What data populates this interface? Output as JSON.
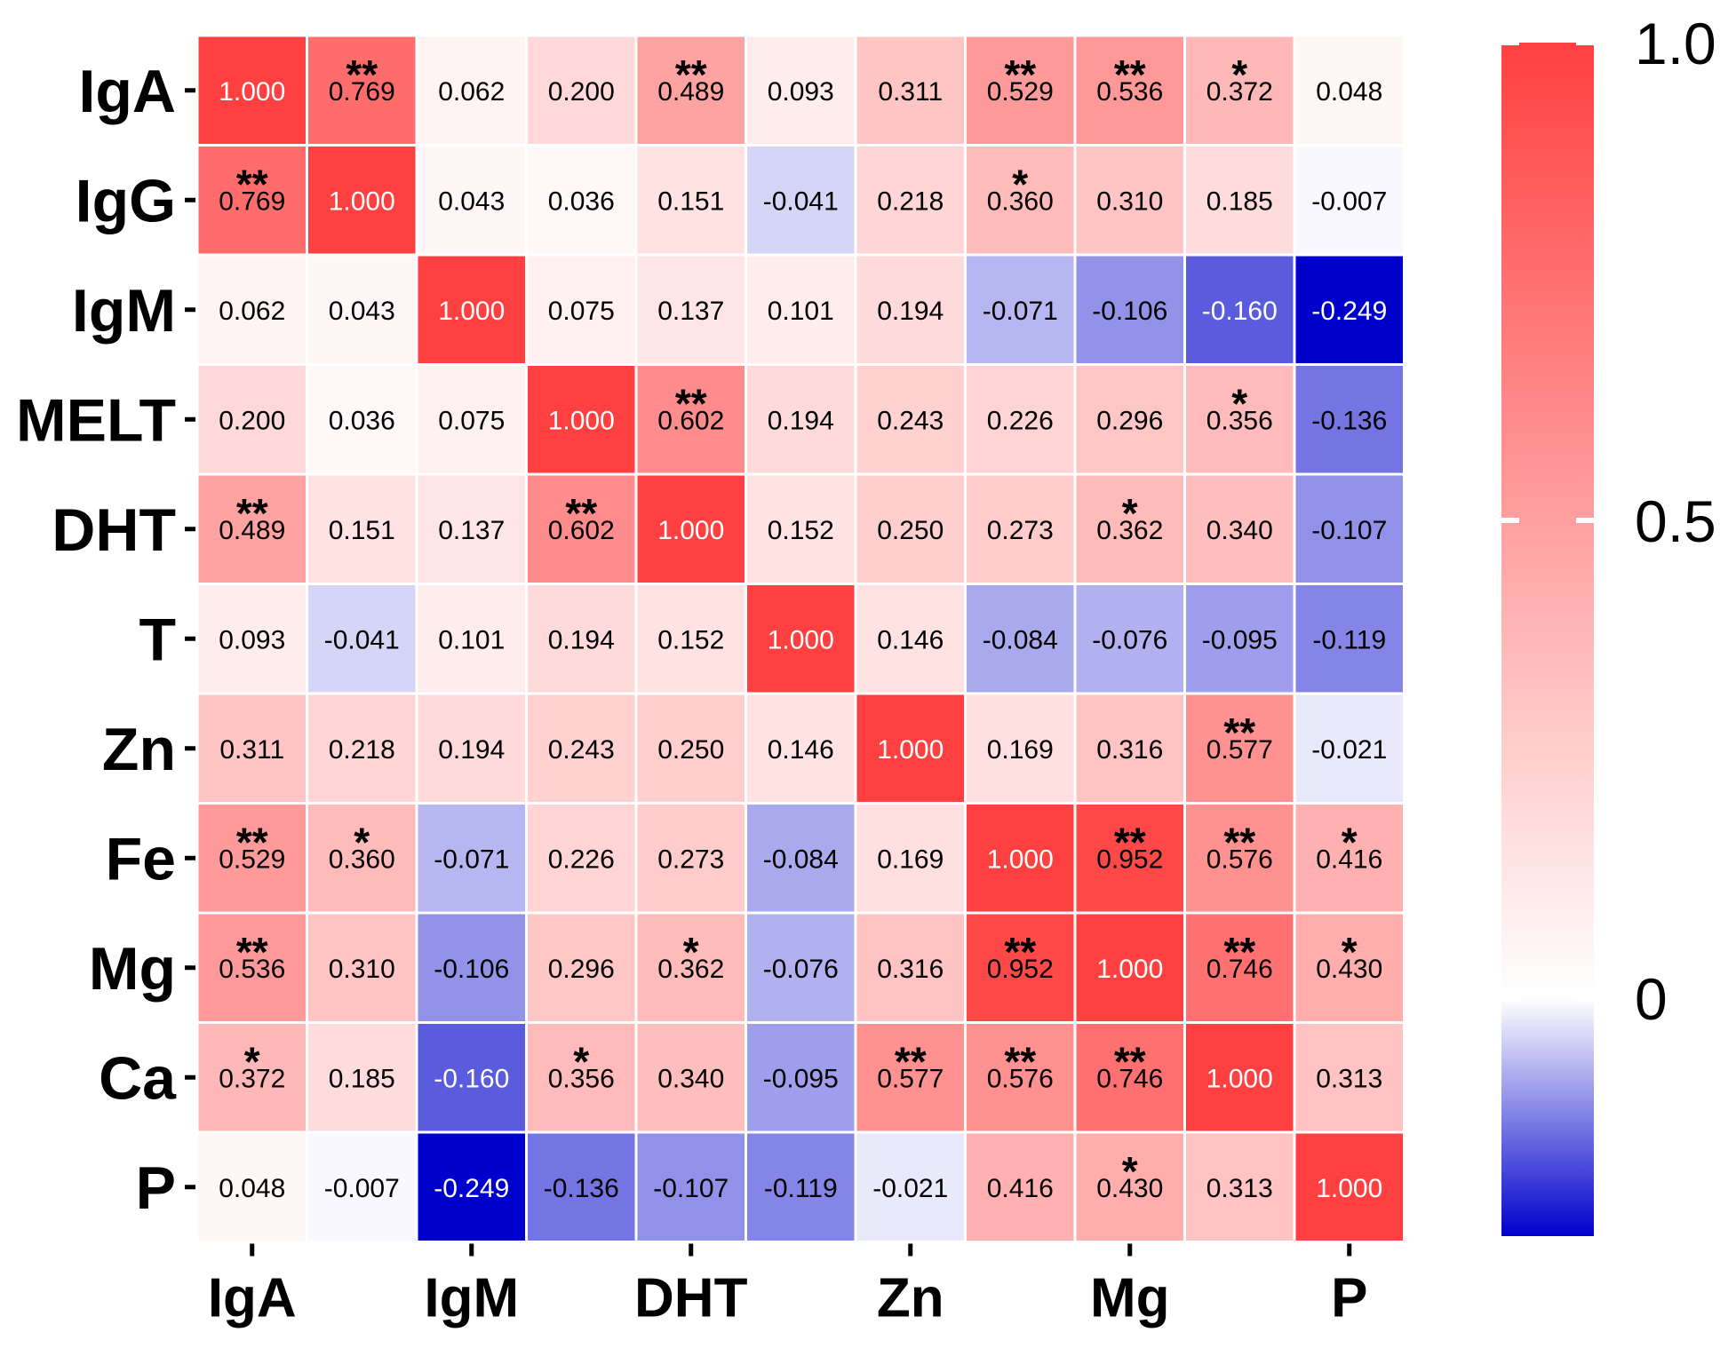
{
  "chart_data": {
    "type": "heatmap",
    "title": "",
    "xlabel": "",
    "ylabel": "",
    "variables": [
      "IgA",
      "IgG",
      "IgM",
      "MELT",
      "DHT",
      "T",
      "Zn",
      "Fe",
      "Mg",
      "Ca",
      "P"
    ],
    "row_labels": [
      "IgA",
      "IgG",
      "IgM",
      "MELT",
      "DHT",
      "T",
      "Zn",
      "Fe",
      "Mg",
      "Ca",
      "P"
    ],
    "x_tick_labels": [
      "IgA",
      "IgM",
      "DHT",
      "Zn",
      "Mg",
      "P"
    ],
    "x_tick_indices": [
      0,
      2,
      4,
      6,
      8,
      10
    ],
    "values": [
      [
        "1.000",
        "0.769",
        "0.062",
        "0.200",
        "0.489",
        "0.093",
        "0.311",
        "0.529",
        "0.536",
        "0.372",
        "0.048"
      ],
      [
        "0.769",
        "1.000",
        "0.043",
        "0.036",
        "0.151",
        "-0.041",
        "0.218",
        "0.360",
        "0.310",
        "0.185",
        "-0.007"
      ],
      [
        "0.062",
        "0.043",
        "1.000",
        "0.075",
        "0.137",
        "0.101",
        "0.194",
        "-0.071",
        "-0.106",
        "-0.160",
        "-0.249"
      ],
      [
        "0.200",
        "0.036",
        "0.075",
        "1.000",
        "0.602",
        "0.194",
        "0.243",
        "0.226",
        "0.296",
        "0.356",
        "-0.136"
      ],
      [
        "0.489",
        "0.151",
        "0.137",
        "0.602",
        "1.000",
        "0.152",
        "0.250",
        "0.273",
        "0.362",
        "0.340",
        "-0.107"
      ],
      [
        "0.093",
        "-0.041",
        "0.101",
        "0.194",
        "0.152",
        "1.000",
        "0.146",
        "-0.084",
        "-0.076",
        "-0.095",
        "-0.119"
      ],
      [
        "0.311",
        "0.218",
        "0.194",
        "0.243",
        "0.250",
        "0.146",
        "1.000",
        "0.169",
        "0.316",
        "0.577",
        "-0.021"
      ],
      [
        "0.529",
        "0.360",
        "-0.071",
        "0.226",
        "0.273",
        "-0.084",
        "0.169",
        "1.000",
        "0.952",
        "0.576",
        "0.416"
      ],
      [
        "0.536",
        "0.310",
        "-0.106",
        "0.296",
        "0.362",
        "-0.076",
        "0.316",
        "0.952",
        "1.000",
        "0.746",
        "0.430"
      ],
      [
        "0.372",
        "0.185",
        "-0.160",
        "0.356",
        "0.340",
        "-0.095",
        "0.577",
        "0.576",
        "0.746",
        "1.000",
        "0.313"
      ],
      [
        "0.048",
        "-0.007",
        "-0.249",
        "-0.136",
        "-0.107",
        "-0.119",
        "-0.021",
        "0.416",
        "0.430",
        "0.313",
        "1.000"
      ]
    ],
    "significance": [
      [
        "",
        "**",
        "",
        "",
        "**",
        "",
        "",
        "**",
        "**",
        "*",
        ""
      ],
      [
        "**",
        "",
        "",
        "",
        "",
        "",
        "",
        "*",
        "",
        "",
        ""
      ],
      [
        "",
        "",
        "",
        "",
        "",
        "",
        "",
        "",
        "",
        "",
        ""
      ],
      [
        "",
        "",
        "",
        "",
        "**",
        "",
        "",
        "",
        "",
        "*",
        ""
      ],
      [
        "**",
        "",
        "",
        "**",
        "",
        "",
        "",
        "",
        "*",
        "",
        ""
      ],
      [
        "",
        "",
        "",
        "",
        "",
        "",
        "",
        "",
        "",
        "",
        ""
      ],
      [
        "",
        "",
        "",
        "",
        "",
        "",
        "",
        "",
        "",
        "**",
        ""
      ],
      [
        "**",
        "*",
        "",
        "",
        "",
        "",
        "",
        "",
        "**",
        "**",
        "*"
      ],
      [
        "**",
        "",
        "",
        "",
        "*",
        "",
        "",
        "**",
        "",
        "**",
        "*"
      ],
      [
        "*",
        "",
        "",
        "*",
        "",
        "",
        "**",
        "**",
        "**",
        "",
        ""
      ],
      [
        "",
        "",
        "",
        "",
        "",
        "",
        "",
        "",
        "*",
        "",
        ""
      ]
    ],
    "color_scale": {
      "min": -0.249,
      "mid": 0,
      "max": 1.0,
      "low_color": "#0000cc",
      "mid_color": "#ffffff",
      "high_color": "#ff4040"
    },
    "legend": {
      "placement": "right",
      "tick_values": [
        0,
        0.5,
        1.0
      ],
      "tick_labels": [
        "0",
        "0.5",
        "1.0"
      ]
    },
    "colors": {
      "grid_line": "#ffffff",
      "text_dark": "#000000",
      "text_light": "#ffffff"
    }
  }
}
